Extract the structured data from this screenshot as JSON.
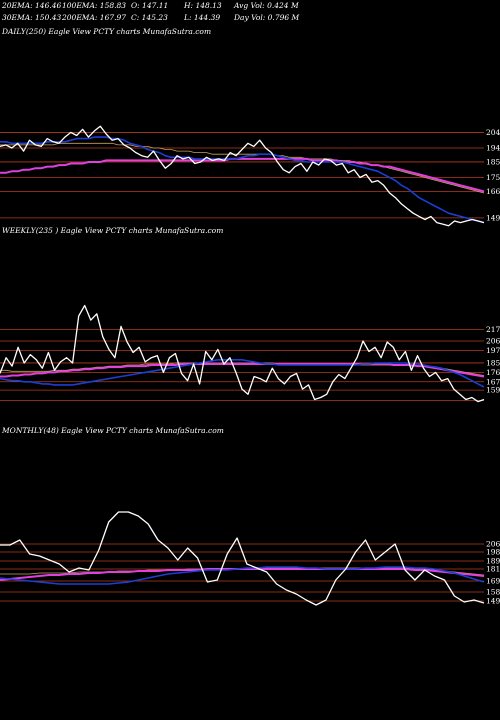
{
  "header": {
    "row1": [
      {
        "text": "20EMA: 146.46"
      },
      {
        "text": "100EMA: 158.83"
      },
      {
        "text": "O: 147.11"
      },
      {
        "text": "H: 148.13"
      },
      {
        "text": "Avg Vol: 0.424  M"
      }
    ],
    "row2": [
      {
        "text": "30EMA: 150.43"
      },
      {
        "text": "200EMA: 167.97"
      },
      {
        "text": "C: 145.23"
      },
      {
        "text": "L: 144.39"
      },
      {
        "text": "Day Vol: 0.796  M"
      }
    ]
  },
  "colors": {
    "background": "#000000",
    "price": "#ffffff",
    "ema_fast": "#1a3fd6",
    "ema_slow": "#e040e0",
    "ema_mid": "#c8a060",
    "level_line": "#b83a1e"
  },
  "chart_data": [
    {
      "type": "line",
      "title": "DAILY(250) Eagle  View  PCTY charts MunafaSutra.com",
      "ticks": [
        "204",
        "194",
        "185",
        "175",
        "166",
        "149"
      ],
      "levels": [
        204,
        194,
        185,
        175,
        166,
        149
      ],
      "ylim": [
        138,
        212
      ],
      "series": [
        {
          "key": "price",
          "values": [
            195,
            196,
            194,
            197,
            192,
            199,
            196,
            195,
            200,
            198,
            197,
            201,
            204,
            202,
            206,
            201,
            205,
            208,
            203,
            199,
            200,
            196,
            194,
            191,
            189,
            188,
            192,
            186,
            181,
            184,
            189,
            187,
            188,
            184,
            185,
            188,
            186,
            187,
            186,
            191,
            189,
            193,
            197,
            195,
            199,
            194,
            191,
            185,
            180,
            178,
            182,
            184,
            179,
            185,
            183,
            187,
            186,
            183,
            184,
            178,
            180,
            175,
            177,
            172,
            173,
            170,
            165,
            162,
            158,
            155,
            152,
            150,
            148,
            150,
            146,
            145,
            144,
            147,
            146,
            147,
            148,
            147,
            146
          ]
        },
        {
          "key": "ema_fast",
          "values": [
            198,
            198,
            197,
            197,
            197,
            197,
            197,
            197,
            198,
            198,
            198,
            198,
            199,
            200,
            200,
            200,
            201,
            201,
            201,
            200,
            200,
            199,
            197,
            196,
            195,
            193,
            192,
            191,
            189,
            188,
            188,
            188,
            188,
            187,
            187,
            187,
            187,
            187,
            187,
            187,
            187,
            188,
            189,
            189,
            190,
            190,
            190,
            189,
            188,
            187,
            186,
            186,
            185,
            185,
            185,
            185,
            185,
            185,
            185,
            184,
            183,
            182,
            181,
            180,
            179,
            177,
            175,
            173,
            170,
            168,
            165,
            162,
            160,
            158,
            156,
            154,
            152,
            151,
            150,
            149,
            148,
            147,
            146
          ]
        },
        {
          "key": "ema_mid",
          "values": [
            196,
            196,
            196,
            196,
            196,
            196,
            196,
            196,
            196,
            196,
            197,
            197,
            197,
            197,
            197,
            197,
            197,
            197,
            197,
            197,
            196,
            196,
            196,
            195,
            195,
            195,
            194,
            194,
            193,
            193,
            192,
            192,
            192,
            191,
            191,
            191,
            190,
            190,
            190,
            190,
            190,
            190,
            190,
            190,
            190,
            190,
            190,
            189,
            189,
            188,
            188,
            188,
            187,
            187,
            187,
            187,
            187,
            186,
            186,
            186,
            185,
            185,
            184,
            183,
            183,
            182,
            181,
            180,
            179,
            178,
            177,
            176,
            175,
            174,
            173,
            172,
            171,
            170,
            169,
            168,
            167,
            166,
            165
          ]
        },
        {
          "key": "ema_slow",
          "values": [
            178,
            178,
            179,
            179,
            180,
            180,
            181,
            181,
            182,
            182,
            183,
            183,
            184,
            184,
            184,
            185,
            185,
            185,
            186,
            186,
            186,
            186,
            186,
            186,
            186,
            186,
            186,
            186,
            186,
            186,
            186,
            186,
            186,
            186,
            186,
            186,
            186,
            186,
            186,
            187,
            187,
            187,
            187,
            187,
            187,
            187,
            187,
            187,
            187,
            187,
            187,
            187,
            187,
            186,
            186,
            186,
            186,
            186,
            185,
            185,
            185,
            184,
            184,
            183,
            183,
            182,
            182,
            181,
            180,
            179,
            178,
            177,
            176,
            175,
            174,
            173,
            172,
            171,
            170,
            169,
            168,
            167,
            166
          ]
        }
      ]
    },
    {
      "type": "line",
      "title": "WEEKLY(235                 ) Eagle  View  PCTY charts MunafaSutra.com",
      "ticks": [
        "217",
        "206",
        "197",
        "185",
        "176",
        "167",
        "159"
      ],
      "levels": [
        217,
        206,
        197,
        185,
        176,
        167,
        159,
        149
      ],
      "ylim": [
        140,
        250
      ],
      "series": [
        {
          "key": "price",
          "values": [
            175,
            190,
            182,
            200,
            185,
            193,
            188,
            180,
            195,
            178,
            186,
            190,
            185,
            230,
            240,
            226,
            232,
            210,
            198,
            190,
            220,
            205,
            195,
            200,
            186,
            190,
            192,
            176,
            190,
            194,
            175,
            168,
            184,
            165,
            196,
            188,
            198,
            184,
            190,
            176,
            160,
            155,
            172,
            170,
            167,
            180,
            170,
            165,
            172,
            175,
            160,
            164,
            150,
            152,
            155,
            167,
            174,
            170,
            180,
            190,
            206,
            196,
            200,
            190,
            205,
            200,
            188,
            196,
            178,
            192,
            180,
            172,
            176,
            168,
            170,
            160,
            155,
            150,
            152,
            148,
            150
          ]
        },
        {
          "key": "ema_fast",
          "values": [
            170,
            169,
            168,
            168,
            167,
            167,
            166,
            165,
            165,
            164,
            164,
            164,
            164,
            165,
            166,
            167,
            168,
            169,
            170,
            171,
            172,
            173,
            174,
            175,
            176,
            177,
            178,
            179,
            180,
            181,
            182,
            183,
            184,
            185,
            186,
            187,
            188,
            188,
            188,
            188,
            188,
            187,
            186,
            185,
            184,
            184,
            183,
            183,
            183,
            183,
            183,
            183,
            183,
            183,
            183,
            183,
            183,
            183,
            183,
            183,
            184,
            184,
            185,
            185,
            185,
            185,
            185,
            185,
            184,
            184,
            183,
            182,
            181,
            180,
            178,
            176,
            174,
            171,
            168,
            165,
            162
          ]
        },
        {
          "key": "ema_mid",
          "values": [
            178,
            178,
            177,
            177,
            177,
            177,
            177,
            177,
            177,
            178,
            178,
            178,
            179,
            179,
            180,
            180,
            181,
            181,
            182,
            182,
            182,
            183,
            183,
            183,
            184,
            184,
            184,
            184,
            184,
            185,
            185,
            185,
            185,
            185,
            185,
            185,
            185,
            185,
            185,
            185,
            185,
            185,
            185,
            185,
            185,
            185,
            184,
            184,
            184,
            184,
            184,
            183,
            183,
            183,
            183,
            183,
            183,
            183,
            183,
            183,
            183,
            183,
            183,
            183,
            183,
            183,
            183,
            183,
            182,
            182,
            182,
            181,
            181,
            180,
            179,
            178,
            177,
            176,
            175,
            174,
            173
          ]
        },
        {
          "key": "ema_slow",
          "values": [
            172,
            172,
            173,
            173,
            174,
            174,
            175,
            175,
            176,
            176,
            177,
            177,
            178,
            178,
            179,
            179,
            180,
            180,
            181,
            181,
            181,
            182,
            182,
            182,
            182,
            183,
            183,
            183,
            183,
            183,
            184,
            184,
            184,
            184,
            184,
            184,
            184,
            184,
            184,
            184,
            184,
            184,
            184,
            184,
            184,
            184,
            184,
            184,
            184,
            184,
            184,
            184,
            184,
            184,
            184,
            184,
            184,
            184,
            184,
            184,
            184,
            184,
            184,
            184,
            184,
            183,
            183,
            183,
            183,
            182,
            182,
            181,
            180,
            179,
            178,
            177,
            176,
            175,
            174,
            173,
            172
          ]
        }
      ]
    },
    {
      "type": "line",
      "title": "MONTHLY(48) Eagle  View  PCTY charts MunafaSutra.com",
      "ticks": [
        "206",
        "198",
        "189",
        "181",
        "169",
        "158",
        "149"
      ],
      "levels": [
        206,
        198,
        189,
        181,
        169,
        158,
        149
      ],
      "ylim": [
        130,
        245
      ],
      "series": [
        {
          "key": "price",
          "values": [
            205,
            205,
            210,
            196,
            194,
            190,
            186,
            178,
            182,
            180,
            200,
            228,
            238,
            238,
            234,
            226,
            210,
            202,
            190,
            202,
            192,
            168,
            170,
            196,
            212,
            186,
            182,
            178,
            166,
            160,
            156,
            150,
            145,
            150,
            170,
            181,
            198,
            210,
            190,
            198,
            206,
            180,
            170,
            180,
            174,
            170,
            154,
            148,
            150,
            147
          ]
        },
        {
          "key": "ema_fast",
          "values": [
            172,
            171,
            170,
            169,
            168,
            167,
            166,
            166,
            166,
            166,
            166,
            166,
            167,
            168,
            170,
            172,
            174,
            176,
            177,
            178,
            179,
            180,
            180,
            180,
            181,
            182,
            182,
            183,
            183,
            183,
            183,
            182,
            182,
            181,
            181,
            181,
            181,
            182,
            182,
            183,
            183,
            183,
            182,
            182,
            181,
            179,
            177,
            174,
            171,
            168
          ]
        },
        {
          "key": "ema_mid",
          "values": [
            176,
            176,
            176,
            176,
            177,
            177,
            177,
            177,
            178,
            178,
            178,
            178,
            179,
            179,
            179,
            180,
            180,
            180,
            180,
            181,
            181,
            181,
            181,
            181,
            181,
            182,
            182,
            182,
            182,
            182,
            182,
            182,
            182,
            182,
            182,
            182,
            182,
            182,
            182,
            182,
            182,
            182,
            181,
            181,
            180,
            179,
            178,
            177,
            176,
            175
          ]
        },
        {
          "key": "ema_slow",
          "values": [
            170,
            171,
            172,
            173,
            174,
            175,
            175,
            176,
            176,
            177,
            177,
            178,
            178,
            178,
            179,
            179,
            179,
            180,
            180,
            180,
            180,
            181,
            181,
            181,
            181,
            181,
            181,
            181,
            181,
            181,
            181,
            181,
            181,
            181,
            181,
            181,
            181,
            181,
            181,
            181,
            181,
            181,
            180,
            180,
            179,
            178,
            177,
            176,
            175,
            174
          ]
        }
      ]
    }
  ]
}
